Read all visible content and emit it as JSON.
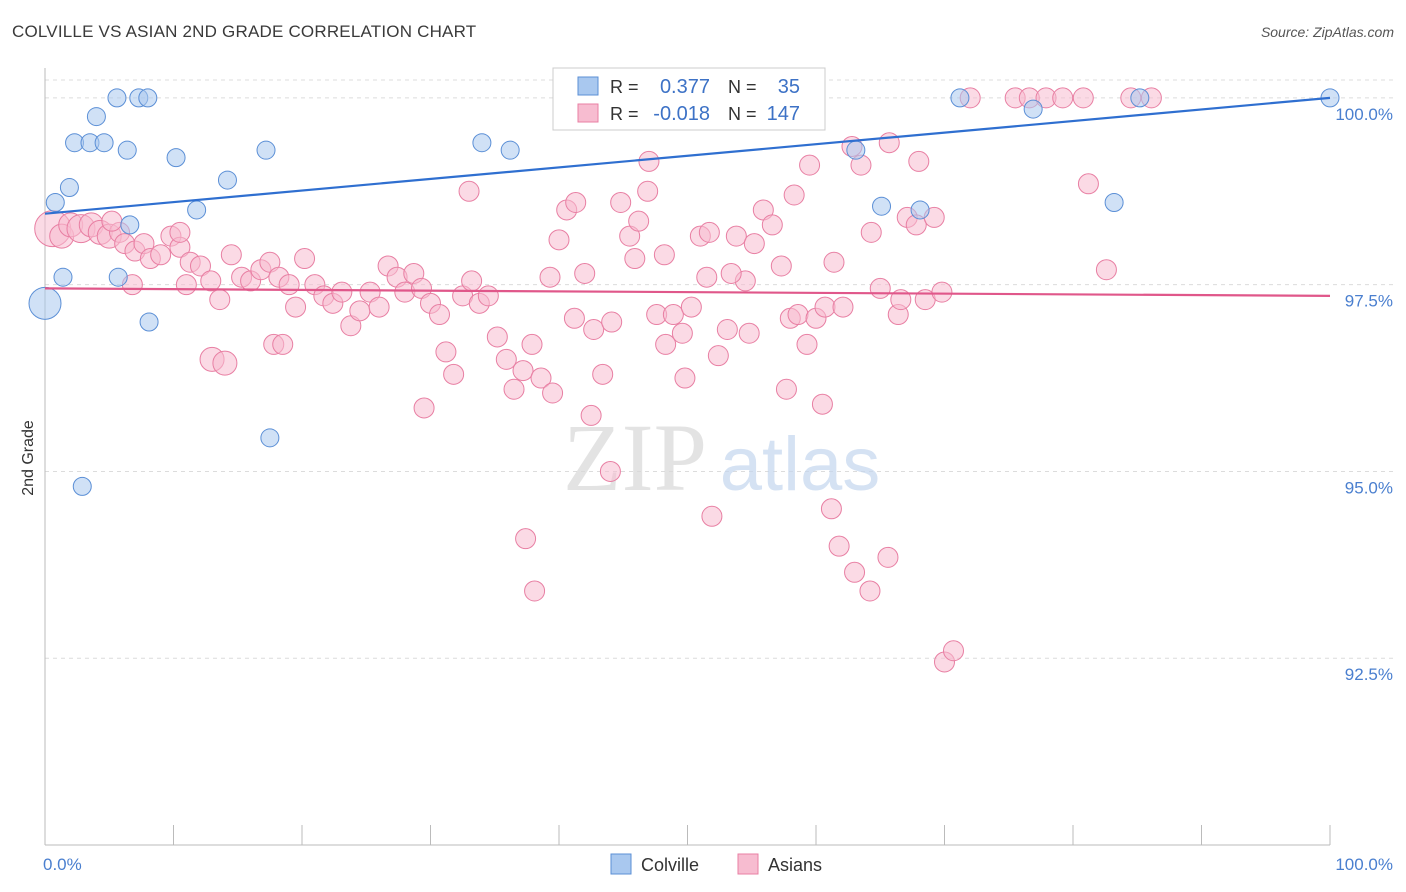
{
  "header": {
    "title": "COLVILLE VS ASIAN 2ND GRADE CORRELATION CHART",
    "source": "Source: ZipAtlas.com"
  },
  "watermark": {
    "zip": "ZIP",
    "atlas": "atlas"
  },
  "chart_data": {
    "type": "scatter",
    "title": "COLVILLE VS ASIAN 2ND GRADE CORRELATION CHART",
    "xlabel": "",
    "ylabel": "2nd Grade",
    "xlim": [
      0,
      100
    ],
    "ylim": [
      90.0,
      100.4
    ],
    "x_tick_labels": [
      "0.0%",
      "100.0%"
    ],
    "y_ticks": [
      {
        "value": 100.0,
        "label": "100.0%"
      },
      {
        "value": 97.5,
        "label": "97.5%"
      },
      {
        "value": 95.0,
        "label": "95.0%"
      },
      {
        "value": 92.5,
        "label": "92.5%"
      }
    ],
    "grid": true,
    "legend": {
      "placement": "top-center",
      "rows": [
        {
          "series": "Colville",
          "r_label": "R =",
          "r_value": "0.377",
          "n_label": "N =",
          "n_value": "35"
        },
        {
          "series": "Asians",
          "r_label": "R =",
          "r_value": "-0.018",
          "n_label": "N =",
          "n_value": "147"
        }
      ]
    },
    "bottom_legend": [
      "Colville",
      "Asians"
    ],
    "series": [
      {
        "name": "Colville",
        "fill": "#a9c8ef",
        "stroke": "#5b8fd6",
        "line_color": "#2f6fd0",
        "trend": {
          "x": [
            0,
            100
          ],
          "y": [
            98.45,
            100.0
          ]
        },
        "points": [
          [
            0.0,
            97.25,
            16
          ],
          [
            0.8,
            98.6,
            9
          ],
          [
            1.4,
            97.6,
            9
          ],
          [
            1.9,
            98.8,
            9
          ],
          [
            2.3,
            99.4,
            9
          ],
          [
            3.5,
            99.4,
            9
          ],
          [
            4.0,
            99.75,
            9
          ],
          [
            4.6,
            99.4,
            9
          ],
          [
            5.6,
            100.0,
            9
          ],
          [
            5.7,
            97.6,
            9
          ],
          [
            6.4,
            99.3,
            9
          ],
          [
            6.6,
            98.3,
            9
          ],
          [
            7.3,
            100.0,
            9
          ],
          [
            8.0,
            100.0,
            9
          ],
          [
            8.1,
            97.0,
            9
          ],
          [
            10.2,
            99.2,
            9
          ],
          [
            11.8,
            98.5,
            9
          ],
          [
            14.2,
            98.9,
            9
          ],
          [
            17.2,
            99.3,
            9
          ],
          [
            17.5,
            95.45,
            9
          ],
          [
            2.9,
            94.8,
            9
          ],
          [
            34.0,
            99.4,
            9
          ],
          [
            36.2,
            99.3,
            9
          ],
          [
            40.9,
            100.0,
            9
          ],
          [
            44.7,
            100.0,
            9
          ],
          [
            48.9,
            100.0,
            9
          ],
          [
            53.7,
            100.0,
            9
          ],
          [
            63.1,
            99.3,
            9
          ],
          [
            65.1,
            98.55,
            9
          ],
          [
            68.1,
            98.5,
            9
          ],
          [
            71.2,
            100.0,
            9
          ],
          [
            76.9,
            99.85,
            9
          ],
          [
            83.2,
            98.6,
            9
          ],
          [
            85.2,
            100.0,
            9
          ],
          [
            100.0,
            100.0,
            9
          ]
        ]
      },
      {
        "name": "Asians",
        "fill": "#f7bcd0",
        "stroke": "#e87fa3",
        "line_color": "#e0578a",
        "trend": {
          "x": [
            0,
            100
          ],
          "y": [
            97.45,
            97.35
          ]
        },
        "points": [
          [
            0.6,
            98.25,
            18
          ],
          [
            1.3,
            98.15,
            12
          ],
          [
            2.0,
            98.3,
            12
          ],
          [
            2.8,
            98.25,
            14
          ],
          [
            3.6,
            98.3,
            12
          ],
          [
            4.3,
            98.2,
            12
          ],
          [
            5.0,
            98.15,
            12
          ],
          [
            5.8,
            98.2,
            10
          ],
          [
            6.2,
            98.05,
            10
          ],
          [
            7.0,
            97.95,
            10
          ],
          [
            7.7,
            98.05,
            10
          ],
          [
            8.2,
            97.85,
            10
          ],
          [
            9.0,
            97.9,
            10
          ],
          [
            9.8,
            98.15,
            10
          ],
          [
            10.5,
            98.0,
            10
          ],
          [
            11.3,
            97.8,
            10
          ],
          [
            12.1,
            97.75,
            10
          ],
          [
            12.9,
            97.55,
            10
          ],
          [
            13.6,
            97.3,
            10
          ],
          [
            14.5,
            97.9,
            10
          ],
          [
            15.3,
            97.6,
            10
          ],
          [
            16.0,
            97.55,
            10
          ],
          [
            16.8,
            97.7,
            10
          ],
          [
            17.5,
            97.8,
            10
          ],
          [
            18.2,
            97.6,
            10
          ],
          [
            19.0,
            97.5,
            10
          ],
          [
            19.5,
            97.2,
            10
          ],
          [
            20.2,
            97.85,
            10
          ],
          [
            21.0,
            97.5,
            10
          ],
          [
            21.7,
            97.35,
            10
          ],
          [
            22.4,
            97.25,
            10
          ],
          [
            23.1,
            97.4,
            10
          ],
          [
            23.8,
            96.95,
            10
          ],
          [
            24.5,
            97.15,
            10
          ],
          [
            25.3,
            97.4,
            10
          ],
          [
            26.0,
            97.2,
            10
          ],
          [
            26.7,
            97.75,
            10
          ],
          [
            27.4,
            97.6,
            10
          ],
          [
            28.0,
            97.4,
            10
          ],
          [
            28.7,
            97.65,
            10
          ],
          [
            29.3,
            97.45,
            10
          ],
          [
            30.0,
            97.25,
            10
          ],
          [
            30.7,
            97.1,
            10
          ],
          [
            31.2,
            96.6,
            10
          ],
          [
            31.8,
            96.3,
            10
          ],
          [
            32.5,
            97.35,
            10
          ],
          [
            33.2,
            97.55,
            10
          ],
          [
            33.8,
            97.25,
            10
          ],
          [
            34.5,
            97.35,
            10
          ],
          [
            35.2,
            96.8,
            10
          ],
          [
            35.9,
            96.5,
            10
          ],
          [
            36.5,
            96.1,
            10
          ],
          [
            37.2,
            96.35,
            10
          ],
          [
            37.9,
            96.7,
            10
          ],
          [
            38.6,
            96.25,
            10
          ],
          [
            39.3,
            97.6,
            10
          ],
          [
            40.0,
            98.1,
            10
          ],
          [
            40.6,
            98.5,
            10
          ],
          [
            41.3,
            98.6,
            10
          ],
          [
            42.0,
            97.65,
            10
          ],
          [
            42.7,
            96.9,
            10
          ],
          [
            43.4,
            96.3,
            10
          ],
          [
            44.1,
            97.0,
            10
          ],
          [
            44.8,
            98.6,
            10
          ],
          [
            45.5,
            98.15,
            10
          ],
          [
            46.2,
            98.35,
            10
          ],
          [
            46.9,
            98.75,
            10
          ],
          [
            47.6,
            97.1,
            10
          ],
          [
            48.3,
            96.7,
            10
          ],
          [
            48.9,
            97.1,
            10
          ],
          [
            49.6,
            96.85,
            10
          ],
          [
            50.3,
            97.2,
            10
          ],
          [
            51.0,
            98.15,
            10
          ],
          [
            51.7,
            98.2,
            10
          ],
          [
            52.4,
            96.55,
            10
          ],
          [
            53.1,
            96.9,
            10
          ],
          [
            53.8,
            98.15,
            10
          ],
          [
            54.5,
            97.55,
            10
          ],
          [
            55.2,
            98.05,
            10
          ],
          [
            55.9,
            98.5,
            10
          ],
          [
            56.6,
            98.3,
            10
          ],
          [
            57.3,
            97.75,
            10
          ],
          [
            58.0,
            97.05,
            10
          ],
          [
            58.6,
            97.1,
            10
          ],
          [
            59.3,
            96.7,
            10
          ],
          [
            60.0,
            97.05,
            10
          ],
          [
            60.7,
            97.2,
            10
          ],
          [
            61.4,
            97.8,
            10
          ],
          [
            62.1,
            97.2,
            10
          ],
          [
            62.8,
            99.35,
            10
          ],
          [
            63.5,
            99.1,
            10
          ],
          [
            64.3,
            98.2,
            10
          ],
          [
            65.0,
            97.45,
            10
          ],
          [
            65.7,
            99.4,
            10
          ],
          [
            66.4,
            97.1,
            10
          ],
          [
            67.1,
            98.4,
            10
          ],
          [
            67.8,
            98.3,
            10
          ],
          [
            68.5,
            97.3,
            10
          ],
          [
            69.2,
            98.4,
            10
          ],
          [
            70.0,
            92.45,
            10
          ],
          [
            70.7,
            92.6,
            10
          ],
          [
            72.0,
            100.0,
            10
          ],
          [
            75.5,
            100.0,
            10
          ],
          [
            76.6,
            100.0,
            10
          ],
          [
            77.9,
            100.0,
            10
          ],
          [
            79.2,
            100.0,
            10
          ],
          [
            80.8,
            100.0,
            10
          ],
          [
            81.2,
            98.85,
            10
          ],
          [
            82.6,
            97.7,
            10
          ],
          [
            84.5,
            100.0,
            10
          ],
          [
            86.1,
            100.0,
            10
          ],
          [
            6.8,
            97.5,
            10
          ],
          [
            11.0,
            97.5,
            10
          ],
          [
            13.0,
            96.5,
            12
          ],
          [
            14.0,
            96.45,
            12
          ],
          [
            17.8,
            96.7,
            10
          ],
          [
            18.5,
            96.7,
            10
          ],
          [
            29.5,
            95.85,
            10
          ],
          [
            33.0,
            98.75,
            10
          ],
          [
            37.4,
            94.1,
            10
          ],
          [
            38.1,
            93.4,
            10
          ],
          [
            39.5,
            96.05,
            10
          ],
          [
            41.2,
            97.05,
            10
          ],
          [
            42.5,
            95.75,
            10
          ],
          [
            44.0,
            95.0,
            10
          ],
          [
            45.9,
            97.85,
            10
          ],
          [
            47.0,
            99.15,
            10
          ],
          [
            48.2,
            97.9,
            10
          ],
          [
            49.8,
            96.25,
            10
          ],
          [
            51.5,
            97.6,
            10
          ],
          [
            51.9,
            94.4,
            10
          ],
          [
            53.4,
            97.65,
            10
          ],
          [
            54.8,
            96.85,
            10
          ],
          [
            57.7,
            96.1,
            10
          ],
          [
            58.3,
            98.7,
            10
          ],
          [
            59.5,
            99.1,
            10
          ],
          [
            60.5,
            95.9,
            10
          ],
          [
            61.2,
            94.5,
            10
          ],
          [
            61.8,
            94.0,
            10
          ],
          [
            63.0,
            93.65,
            10
          ],
          [
            64.2,
            93.4,
            10
          ],
          [
            65.6,
            93.85,
            10
          ],
          [
            66.6,
            97.3,
            10
          ],
          [
            68.0,
            99.15,
            10
          ],
          [
            69.8,
            97.4,
            10
          ],
          [
            10.5,
            98.2,
            10
          ],
          [
            5.2,
            98.35,
            10
          ]
        ]
      }
    ]
  }
}
